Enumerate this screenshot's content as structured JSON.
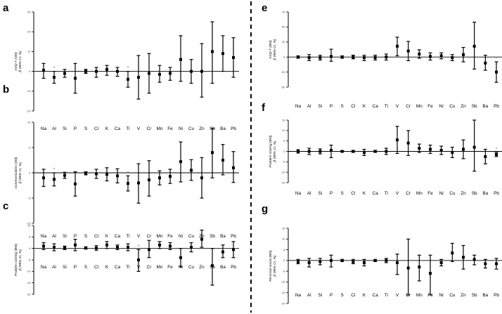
{
  "chart_data": [
    {
      "panel": "a",
      "type": "scatter",
      "ylabel_lines": [
        "ASQ-T (SM)",
        "β (95% CI, %)"
      ],
      "ylim": [
        -20,
        30
      ],
      "yticks": [
        -20,
        -10,
        0,
        10,
        20,
        30
      ],
      "categories": [
        "Na",
        "Al",
        "Si",
        "P",
        "S",
        "Cl",
        "K",
        "Ca",
        "Ti",
        "V",
        "Cr",
        "Mn",
        "Fe",
        "Ni",
        "Cu",
        "Zn",
        "Sb",
        "Ba",
        "Pb"
      ],
      "values": [
        0.5,
        -3,
        -1,
        -3.5,
        0,
        0,
        1,
        0,
        -4,
        -3,
        -1,
        -1.5,
        -1,
        6,
        0,
        0,
        10,
        9,
        7
      ],
      "ci_low": [
        -3.5,
        -6,
        -3,
        -11,
        -1,
        -3,
        -2,
        -2.5,
        -8,
        -14,
        -11,
        -5.5,
        -4.5,
        -5,
        -6,
        -13,
        -6,
        0,
        -3
      ],
      "ci_high": [
        4,
        0,
        1,
        4,
        1,
        2,
        3,
        2,
        0,
        8,
        9,
        3,
        2,
        18,
        6,
        14,
        25,
        18,
        17
      ],
      "significant": [
        "Al",
        "Ti"
      ]
    },
    {
      "panel": "b",
      "type": "scatter",
      "ylabel_lines": [
        "Communication (SM)",
        "β (95% CI, %)"
      ],
      "ylim": [
        -10,
        10
      ],
      "yticks": [
        -10,
        -5,
        0,
        5,
        10
      ],
      "categories": [
        "Na",
        "Al",
        "Si",
        "P",
        "S",
        "Cl",
        "K",
        "Ca",
        "Ti",
        "V",
        "Cr",
        "Mn",
        "Fe",
        "Ni",
        "Cu",
        "Zn",
        "Sb",
        "Ba",
        "Pb"
      ],
      "values": [
        -1,
        -1.3,
        -0.5,
        -2.2,
        -0.1,
        -0.2,
        -0.3,
        -0.6,
        -2.1,
        -2,
        -1.4,
        -1,
        -0.7,
        2.2,
        0.5,
        -1,
        4,
        2.5,
        1
      ],
      "ci_low": [
        -2.7,
        -2.6,
        -1.1,
        -4.6,
        -0.4,
        -1.1,
        -1.6,
        -2,
        -3.6,
        -6,
        -4.6,
        -2.4,
        -2.1,
        -1.8,
        -1.5,
        -5,
        -1,
        -0.4,
        -1.9
      ],
      "ci_high": [
        0.7,
        0,
        0.1,
        0.2,
        0.2,
        0.7,
        1,
        0.8,
        -0.6,
        1.8,
        2.4,
        0.4,
        0.7,
        6.1,
        2.6,
        3,
        8.8,
        5.6,
        4.2
      ],
      "significant": [
        "Al",
        "Ti"
      ]
    },
    {
      "panel": "c",
      "type": "scatter",
      "ylabel_lines": [
        "Problem solving (BM)",
        "β (95% CI, %)"
      ],
      "ylim": [
        -20,
        10
      ],
      "yticks": [
        -20,
        -15,
        -10,
        -5,
        0,
        5,
        10
      ],
      "categories": [
        "Na",
        "Al",
        "Si",
        "P",
        "S",
        "Cl",
        "K",
        "Ca",
        "Ti",
        "V",
        "Cr",
        "Mn",
        "Fe",
        "Ni",
        "Cu",
        "Zn",
        "Sb",
        "Ba",
        "Pb"
      ],
      "values": [
        1,
        0.5,
        0.3,
        1.5,
        0.2,
        0.2,
        1.5,
        0.5,
        0.5,
        -5,
        -0.5,
        1.5,
        1,
        -4,
        0.5,
        4,
        -7.5,
        -1.5,
        -0.5
      ],
      "ci_low": [
        -0.5,
        -1,
        -0.5,
        -1,
        -0.3,
        -0.8,
        0,
        -0.5,
        -1,
        -10,
        -4,
        0,
        -0.5,
        -8,
        -1.5,
        0.5,
        -16,
        -4,
        -4
      ],
      "ci_high": [
        2.5,
        2,
        1,
        4,
        0.7,
        1.2,
        3,
        1.5,
        2,
        -0.5,
        3.5,
        3,
        2.5,
        0,
        2.5,
        8,
        0,
        1.5,
        3
      ],
      "significant": [
        "V"
      ]
    },
    {
      "panel": "e",
      "type": "scatter",
      "ylabel_lines": [
        "ASQ-T (BM)",
        "β (95% CI, %)"
      ],
      "ylim": [
        -50,
        75
      ],
      "yticks": [
        -50,
        -25,
        0,
        25,
        50,
        75
      ],
      "categories": [
        "Na",
        "Al",
        "Si",
        "P",
        "S",
        "Cl",
        "K",
        "Ca",
        "Ti",
        "V",
        "Cr",
        "Mn",
        "Fe",
        "Ni",
        "Cu",
        "Zn",
        "Sb",
        "Ba",
        "Pb"
      ],
      "values": [
        0,
        -1,
        -1,
        1,
        0,
        0,
        -1,
        -1,
        0,
        18,
        10,
        5,
        1,
        2,
        -1,
        4,
        18,
        -10,
        -25
      ],
      "ci_low": [
        -2,
        -6,
        -5,
        -7,
        -2,
        -3,
        -6,
        -5,
        -5,
        2,
        -6,
        -2,
        -5,
        -3,
        -6,
        -8,
        -20,
        -22,
        -42
      ],
      "ci_high": [
        2,
        4,
        3,
        13,
        2,
        3,
        3,
        3,
        5,
        33,
        26,
        12,
        7,
        7,
        4,
        16,
        58,
        3,
        -8
      ],
      "significant": [
        "Pb"
      ]
    },
    {
      "panel": "f",
      "type": "scatter",
      "ylabel_lines": [
        "Problem solving (BM)",
        "β (95% CI, %)"
      ],
      "ylim": [
        -15,
        15
      ],
      "yticks": [
        -15,
        -10,
        -5,
        0,
        5,
        10,
        15
      ],
      "categories": [
        "Na",
        "Al",
        "Si",
        "P",
        "S",
        "Cl",
        "K",
        "Ca",
        "Ti",
        "V",
        "Cr",
        "Mn",
        "Fe",
        "Ni",
        "Cu",
        "Zn",
        "Sb",
        "Ba",
        "Pb"
      ],
      "values": [
        0,
        0,
        0,
        0.5,
        0,
        0,
        -0.5,
        0,
        0,
        5.5,
        4,
        1.5,
        1,
        0.5,
        -0.5,
        1,
        2,
        -2.5,
        -1.5
      ],
      "ci_low": [
        -0.8,
        -1.5,
        -1.2,
        -3,
        -0.3,
        -0.5,
        -2,
        -0.5,
        -1.5,
        -1,
        -2,
        -0.5,
        -1,
        -1.5,
        -3,
        -3.5,
        -9.5,
        -6,
        -2.5
      ],
      "ci_high": [
        0.8,
        1.5,
        1.2,
        3,
        0.3,
        0.5,
        1,
        0.5,
        1.5,
        12,
        10,
        3.5,
        3,
        2.5,
        2,
        5.5,
        15,
        1,
        -0.5
      ],
      "significant": [
        "Pb"
      ]
    },
    {
      "panel": "g",
      "type": "scatter",
      "ylabel_lines": [
        "Personal-social (BM)",
        "β (95% CI, %)"
      ],
      "ylim": [
        -20,
        15
      ],
      "yticks": [
        -20,
        -15,
        -10,
        -5,
        0,
        5,
        10,
        15
      ],
      "categories": [
        "Na",
        "Al",
        "Si",
        "P",
        "S",
        "Cl",
        "K",
        "Ca",
        "Ti",
        "V",
        "Cr",
        "Mn",
        "Fe",
        "Ni",
        "Cu",
        "Zn",
        "Sb",
        "Ba",
        "Pb"
      ],
      "values": [
        -0.5,
        -1,
        -0.5,
        0,
        0,
        -0.5,
        -1,
        0,
        0,
        -1,
        -3.5,
        -3,
        -6,
        -1,
        3.5,
        1.5,
        0.5,
        -1.5,
        -1.5
      ],
      "ci_low": [
        -1.5,
        -3,
        -2,
        -3,
        -0.5,
        -1.5,
        -2.5,
        -0.5,
        -1,
        -6.5,
        -16,
        -9.5,
        -16,
        -2.5,
        -0.5,
        -4,
        -2,
        -3.5,
        -4
      ],
      "ci_high": [
        0.5,
        1,
        1,
        2.5,
        0.5,
        0.5,
        0.5,
        0.5,
        1,
        3,
        10,
        2.5,
        2.5,
        0.5,
        8,
        7,
        2.5,
        0.5,
        1
      ],
      "significant": []
    }
  ]
}
